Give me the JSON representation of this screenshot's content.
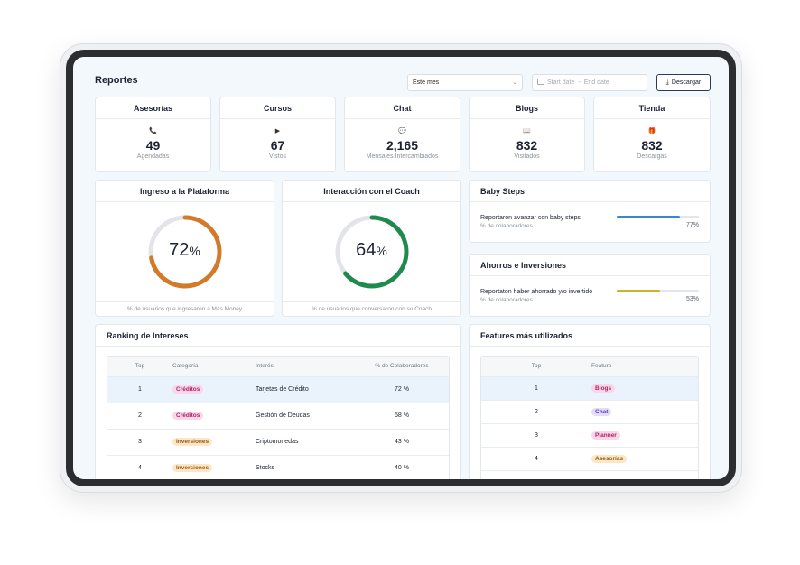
{
  "header": {
    "title": "Reportes",
    "period_select": "Este mes",
    "start_placeholder": "Start date",
    "end_placeholder": "End date",
    "download_label": "Descargar"
  },
  "stats": [
    {
      "title": "Asesorías",
      "icon": "phone-icon",
      "glyph": "📞",
      "value": "49",
      "label": "Agendadas"
    },
    {
      "title": "Cursos",
      "icon": "play-icon",
      "glyph": "▶",
      "value": "67",
      "label": "Vistos"
    },
    {
      "title": "Chat",
      "icon": "chat-bubble-icon",
      "glyph": "💬",
      "value": "2,165",
      "label": "Mensajes Intercambiados"
    },
    {
      "title": "Blogs",
      "icon": "blog-icon",
      "glyph": "📖",
      "value": "832",
      "label": "Visitados"
    },
    {
      "title": "Tienda",
      "icon": "gift-icon",
      "glyph": "🎁",
      "value": "832",
      "label": "Descargas"
    }
  ],
  "gauges": [
    {
      "title": "Ingreso a la Plataforma",
      "value": 72,
      "value_text": "72",
      "pct_sign": "%",
      "color": "#d27a2a",
      "footer": "% de usuarios que ingresaron a Más Money"
    },
    {
      "title": "Interacción con el Coach",
      "value": 64,
      "value_text": "64",
      "pct_sign": "%",
      "color": "#1f8a4c",
      "footer": "% de usuarios que conversaron con su Coach"
    }
  ],
  "baby_steps": {
    "title": "Baby Steps",
    "text": "Reportaron avanzar con baby steps",
    "sub": "% de colaboradores",
    "value": 77,
    "value_text": "77%",
    "color": "#3b86d1"
  },
  "ahorros": {
    "title": "Ahorros e Inversiones",
    "text": "Reportaton haber ahorrado y/o invertido",
    "sub": "% de colaboradores",
    "value": 53,
    "value_text": "53%",
    "color": "#c8b624"
  },
  "ranking": {
    "title": "Ranking de Intereses",
    "columns": [
      "Top",
      "Categoría",
      "Interés",
      "% de Colaboradores"
    ],
    "rows": [
      {
        "top": "1",
        "category": "Créditos",
        "interest": "Tarjetas de Crédito",
        "pct": "72 %",
        "pill_bg": "#f8d7e8",
        "pill_fg": "#b0246a"
      },
      {
        "top": "2",
        "category": "Créditos",
        "interest": "Gestión de Deudas",
        "pct": "58 %",
        "pill_bg": "#f8d7e8",
        "pill_fg": "#b0246a"
      },
      {
        "top": "3",
        "category": "Inversiones",
        "interest": "Criptomonedas",
        "pct": "43 %",
        "pill_bg": "#fbe6c6",
        "pill_fg": "#9a5a12"
      },
      {
        "top": "4",
        "category": "Inversiones",
        "interest": "Stocks",
        "pct": "40 %",
        "pill_bg": "#fbe6c6",
        "pill_fg": "#9a5a12"
      }
    ]
  },
  "features": {
    "title": "Features más utilizados",
    "columns": [
      "Top",
      "Feature"
    ],
    "rows": [
      {
        "top": "1",
        "feature": "Blogs",
        "pill_bg": "#f8d7e8",
        "pill_fg": "#b0246a"
      },
      {
        "top": "2",
        "feature": "Chat",
        "pill_bg": "#e3dcf7",
        "pill_fg": "#5b3fb3"
      },
      {
        "top": "3",
        "feature": "Planner",
        "pill_bg": "#f8d7e8",
        "pill_fg": "#b0246a"
      },
      {
        "top": "4",
        "feature": "Asesorías",
        "pill_bg": "#fbe6c6",
        "pill_fg": "#9a5a12"
      }
    ]
  }
}
